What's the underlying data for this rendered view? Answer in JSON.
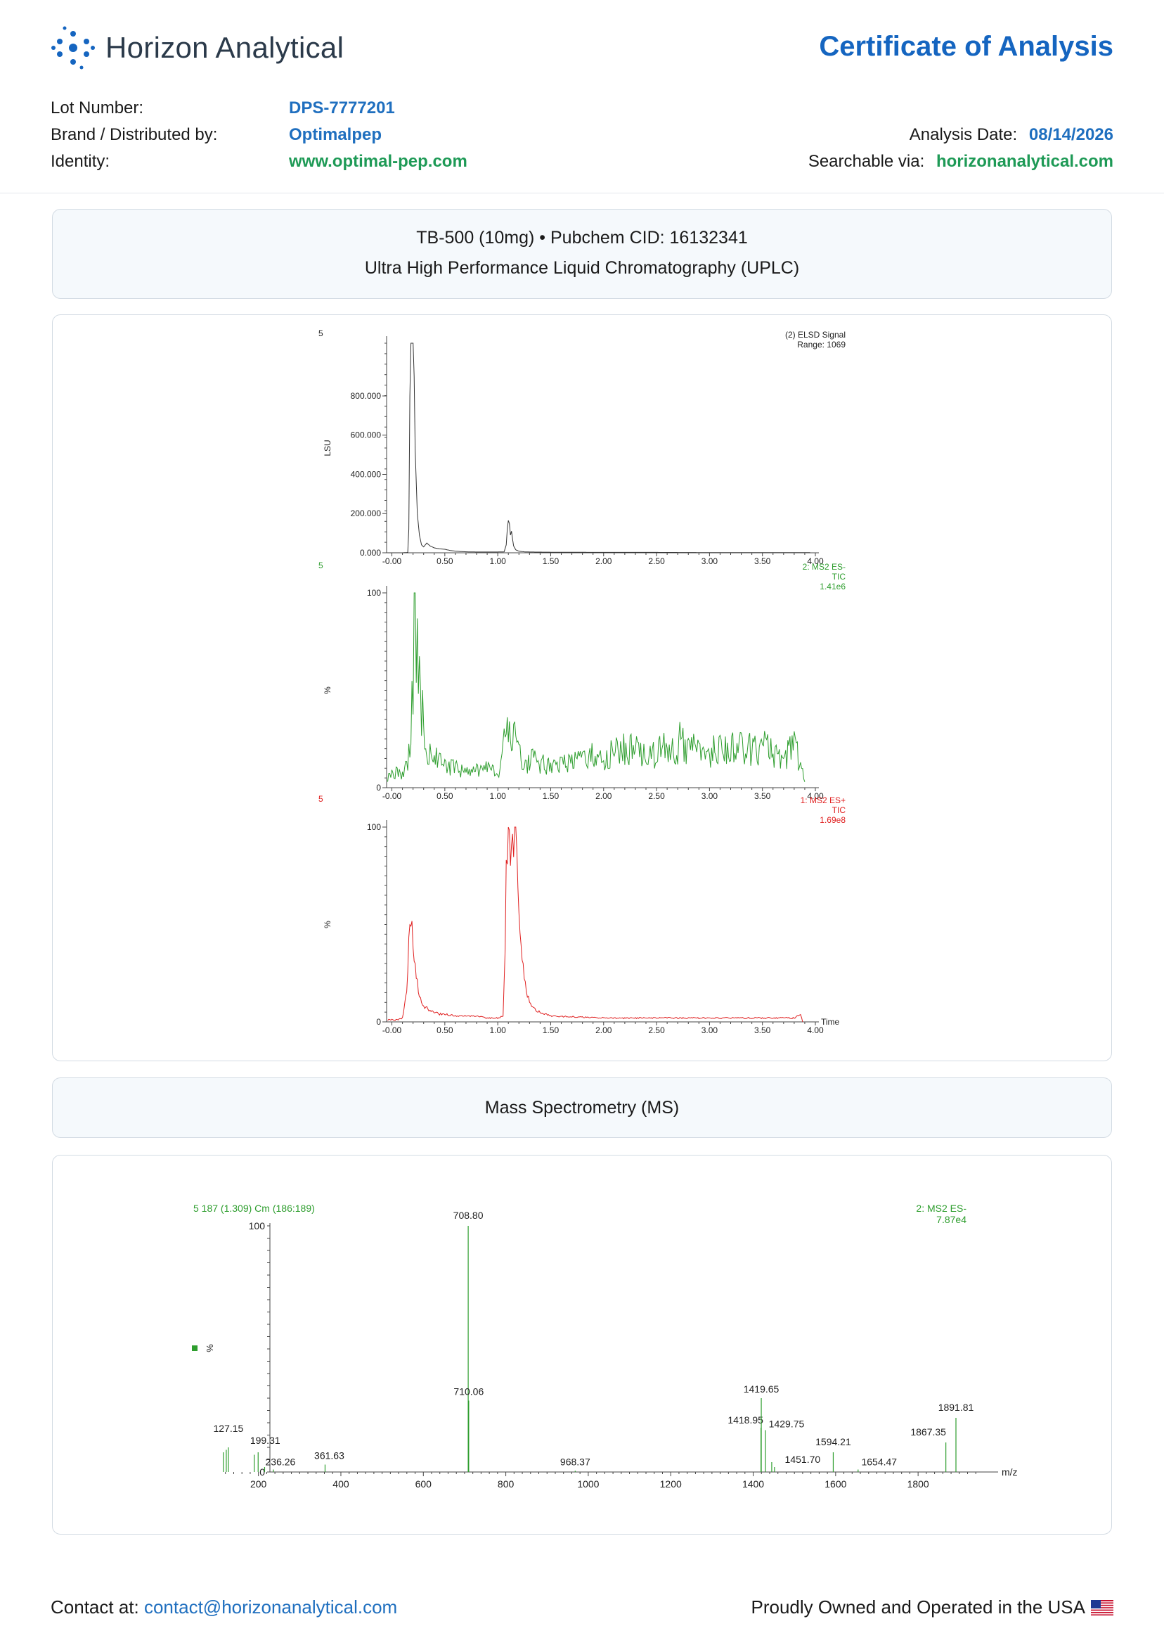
{
  "header": {
    "brand_name": "Horizon Analytical",
    "document_title": "Certificate of Analysis",
    "lot_number_label": "Lot Number:",
    "lot_number": "DPS-7777201",
    "brand_label": "Brand / Distributed by:",
    "brand_value": "Optimalpep",
    "identity_label": "Identity:",
    "identity_value": "www.optimal-pep.com",
    "analysis_date_label": "Analysis Date:",
    "analysis_date": "08/14/2026",
    "searchable_label": "Searchable via:",
    "searchable_value": "horizonanalytical.com"
  },
  "uplc_section": {
    "compound_line": "TB-500 (10mg) • Pubchem CID: 16132341",
    "method_title": "Ultra High Performance Liquid Chromatography (UPLC)"
  },
  "ms_section": {
    "title": "Mass Spectrometry (MS)"
  },
  "footer": {
    "contact_label": "Contact at:",
    "contact_email": "contact@horizonanalytical.com",
    "tagline": "Proudly Owned and Operated in the USA"
  },
  "colors": {
    "accent_blue": "#1565c0",
    "link_blue": "#1f6fbf",
    "link_green": "#1e9a56",
    "elsd_trace": "#333333",
    "ms_neg_trace": "#2e9e2e",
    "ms_pos_trace": "#e02020"
  },
  "chart_data": [
    {
      "type": "line",
      "sample_label": "5",
      "legend": [
        "(2) ELSD Signal",
        "Range: 1069"
      ],
      "ylabel": "LSU",
      "xlim": [
        -0.05,
        4.0
      ],
      "ylim": [
        0,
        1069
      ],
      "x_ticks": [
        "-0.00",
        "0.50",
        "1.00",
        "1.50",
        "2.00",
        "2.50",
        "3.00",
        "3.50",
        "4.00"
      ],
      "y_ticks": [
        {
          "value": 0,
          "label": "0.000"
        },
        {
          "value": 200,
          "label": "200.000"
        },
        {
          "value": 400,
          "label": "400.000"
        },
        {
          "value": 600,
          "label": "600.000"
        },
        {
          "value": 800,
          "label": "800.000"
        }
      ],
      "x": [
        -0.04,
        0.1,
        0.15,
        0.16,
        0.17,
        0.18,
        0.19,
        0.2,
        0.21,
        0.22,
        0.24,
        0.26,
        0.28,
        0.3,
        0.33,
        0.36,
        0.4,
        0.45,
        0.5,
        0.55,
        0.6,
        0.7,
        0.8,
        0.9,
        1.0,
        1.06,
        1.08,
        1.09,
        1.1,
        1.11,
        1.12,
        1.13,
        1.14,
        1.15,
        1.17,
        1.2,
        1.25,
        1.3,
        1.5,
        2.0,
        2.5,
        3.0,
        3.5,
        3.95
      ],
      "y": [
        0,
        0,
        2,
        120,
        800,
        1069,
        1069,
        1069,
        900,
        520,
        200,
        90,
        40,
        30,
        50,
        35,
        25,
        20,
        18,
        12,
        8,
        5,
        4,
        4,
        4,
        5,
        40,
        120,
        165,
        150,
        90,
        110,
        70,
        35,
        15,
        8,
        5,
        4,
        3,
        2,
        2,
        1,
        1,
        1
      ]
    },
    {
      "type": "line",
      "sample_label": "5",
      "legend": [
        "2: MS2 ES-",
        "TIC",
        "1.41e6"
      ],
      "ylabel": "%",
      "xlim": [
        -0.05,
        4.0
      ],
      "ylim": [
        0,
        100
      ],
      "x_ticks": [
        "-0.00",
        "0.50",
        "1.00",
        "1.50",
        "2.00",
        "2.50",
        "3.00",
        "3.50",
        "4.00"
      ],
      "y_ticks": [
        {
          "value": 0,
          "label": "0"
        },
        {
          "value": 100,
          "label": "100"
        }
      ],
      "x": [
        -0.04,
        0.05,
        0.1,
        0.15,
        0.18,
        0.2,
        0.22,
        0.24,
        0.26,
        0.28,
        0.3,
        0.33,
        0.36,
        0.4,
        0.5,
        0.6,
        0.7,
        0.8,
        0.9,
        1.0,
        1.05,
        1.08,
        1.1,
        1.12,
        1.15,
        1.18,
        1.2,
        1.25,
        1.3,
        1.4,
        1.5,
        1.6,
        1.7,
        1.8,
        1.9,
        2.0,
        2.1,
        2.2,
        2.3,
        2.4,
        2.5,
        2.6,
        2.7,
        2.73,
        2.76,
        2.8,
        2.9,
        3.0,
        3.1,
        3.2,
        3.3,
        3.4,
        3.5,
        3.6,
        3.7,
        3.8,
        3.86,
        3.9
      ],
      "y": [
        5,
        8,
        6,
        12,
        35,
        65,
        100,
        78,
        55,
        45,
        30,
        20,
        18,
        15,
        12,
        10,
        8,
        9,
        10,
        7,
        18,
        30,
        25,
        32,
        28,
        20,
        16,
        12,
        14,
        13,
        10,
        11,
        15,
        13,
        17,
        14,
        18,
        20,
        19,
        15,
        18,
        20,
        17,
        32,
        18,
        20,
        19,
        18,
        22,
        20,
        21,
        19,
        22,
        18,
        16,
        20,
        14,
        3
      ]
    },
    {
      "type": "line",
      "sample_label": "5",
      "legend": [
        "1: MS2 ES+",
        "TIC",
        "1.69e8"
      ],
      "ylabel": "%",
      "xlabel": "Time",
      "xlim": [
        -0.05,
        4.0
      ],
      "ylim": [
        0,
        100
      ],
      "x_ticks": [
        "-0.00",
        "0.50",
        "1.00",
        "1.50",
        "2.00",
        "2.50",
        "3.00",
        "3.50",
        "4.00"
      ],
      "y_ticks": [
        {
          "value": 0,
          "label": "0"
        },
        {
          "value": 100,
          "label": "100"
        }
      ],
      "x": [
        -0.04,
        0.05,
        0.1,
        0.14,
        0.16,
        0.18,
        0.19,
        0.2,
        0.22,
        0.24,
        0.26,
        0.28,
        0.3,
        0.33,
        0.36,
        0.4,
        0.45,
        0.5,
        0.6,
        0.7,
        0.8,
        0.9,
        1.0,
        1.05,
        1.07,
        1.08,
        1.1,
        1.12,
        1.14,
        1.15,
        1.16,
        1.17,
        1.18,
        1.2,
        1.22,
        1.24,
        1.26,
        1.28,
        1.3,
        1.33,
        1.36,
        1.4,
        1.45,
        1.5,
        2.0,
        2.5,
        3.0,
        3.5,
        3.8,
        3.86,
        3.88
      ],
      "y": [
        1,
        1,
        2,
        15,
        40,
        53,
        50,
        40,
        28,
        20,
        14,
        10,
        8,
        7,
        6,
        5,
        4,
        4,
        3,
        3,
        3,
        2,
        2,
        3,
        35,
        80,
        92,
        88,
        98,
        94,
        100,
        96,
        82,
        60,
        42,
        28,
        20,
        14,
        10,
        8,
        6,
        5,
        4,
        3,
        2,
        2,
        2,
        2,
        2,
        4,
        0
      ]
    },
    {
      "type": "bar",
      "scan_label": "5 187 (1.309) Cm (186:189)",
      "legend": [
        "2: MS2 ES-",
        "7.87e4"
      ],
      "ylabel": "%",
      "xlabel": "m/z",
      "xlim": [
        100,
        1960
      ],
      "ylim": [
        0,
        100
      ],
      "x_ticks": [
        "200",
        "400",
        "600",
        "800",
        "1000",
        "1200",
        "1400",
        "1600",
        "1800"
      ],
      "y_ticks": [
        {
          "value": 0,
          "label": "0"
        },
        {
          "value": 100,
          "label": "100"
        }
      ],
      "peaks_mz": [
        115,
        122,
        127.15,
        190,
        199.31,
        215,
        236.26,
        361.63,
        708.8,
        710.06,
        968.37,
        1418.95,
        1419.65,
        1429.75,
        1445,
        1451.7,
        1594.21,
        1654.47,
        1867.35,
        1891.81
      ],
      "peaks_intensity": [
        8,
        9,
        10,
        7,
        8,
        2,
        1,
        3,
        100,
        29,
        0.5,
        18,
        30,
        17,
        4,
        2,
        8,
        1,
        12,
        22
      ],
      "peak_labels": [
        "",
        "",
        "127.15",
        "",
        "199.31",
        "",
        "236.26",
        "361.63",
        "708.80",
        "710.06",
        "968.37",
        "1418.95",
        "1419.65",
        "1429.75",
        "",
        "1451.70",
        "1594.21",
        "1654.47",
        "1867.35",
        "1891.81"
      ]
    }
  ]
}
